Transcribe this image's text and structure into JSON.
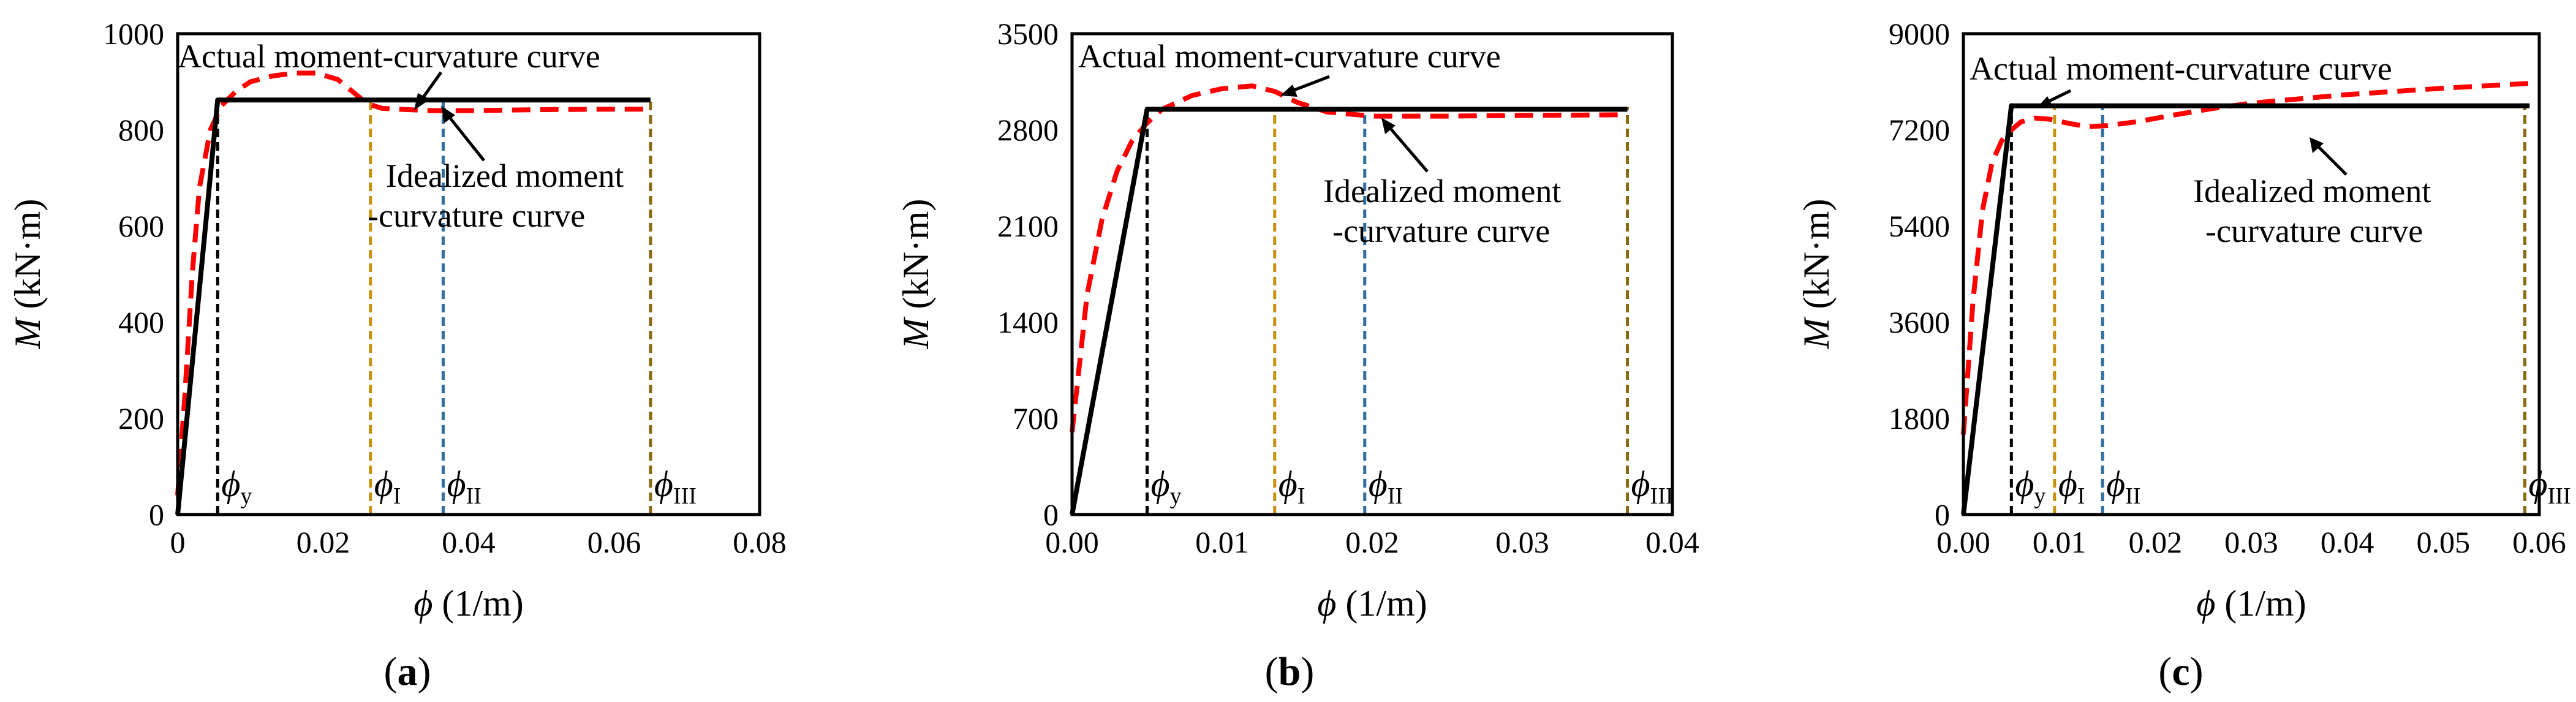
{
  "chart_data": [
    {
      "type": "line",
      "panel": "a",
      "xlabel_sym": "ϕ",
      "xlabel_unit": " (1/m)",
      "ylabel_sym": "M",
      "ylabel_unit": " (kN·m)",
      "xlim": [
        0,
        0.08
      ],
      "ylim": [
        0,
        1000
      ],
      "xticks": [
        "0",
        "0.02",
        "0.04",
        "0.06",
        "0.08"
      ],
      "xtick_values": [
        0,
        0.02,
        0.04,
        0.06,
        0.08
      ],
      "yticks": [
        "0",
        "200",
        "400",
        "600",
        "800",
        "1000"
      ],
      "ytick_values": [
        0,
        200,
        400,
        600,
        800,
        1000
      ],
      "series": [
        {
          "name": "Idealized moment-curvature curve",
          "color": "#000000",
          "style": "solid",
          "x": [
            0,
            0.0055,
            0.065
          ],
          "y": [
            0,
            862,
            862
          ]
        },
        {
          "name": "Actual moment-curvature curve",
          "color": "#ff0000",
          "style": "dashed",
          "x": [
            0,
            0.001,
            0.002,
            0.003,
            0.0045,
            0.006,
            0.008,
            0.01,
            0.013,
            0.016,
            0.019,
            0.022,
            0.024,
            0.026,
            0.028,
            0.03,
            0.035,
            0.04,
            0.05,
            0.06,
            0.065
          ],
          "y": [
            40,
            250,
            500,
            680,
            800,
            850,
            880,
            900,
            912,
            918,
            918,
            905,
            880,
            855,
            845,
            843,
            840,
            840,
            842,
            843,
            843
          ]
        }
      ],
      "markers": [
        {
          "sym": "ϕ",
          "sub": "y",
          "x": 0.0055,
          "color": "#000000"
        },
        {
          "sym": "ϕ",
          "sub": "I",
          "x": 0.0265,
          "color": "#c9920e"
        },
        {
          "sym": "ϕ",
          "sub": "II",
          "x": 0.0365,
          "color": "#2f6ea3"
        },
        {
          "sym": "ϕ",
          "sub": "III",
          "x": 0.065,
          "color": "#8a6a10"
        }
      ],
      "annotations": {
        "actual_label": "Actual moment-curvature curve",
        "idealized_line1": "Idealized moment",
        "idealized_line2": "-curvature curve"
      }
    },
    {
      "type": "line",
      "panel": "b",
      "xlabel_sym": "ϕ",
      "xlabel_unit": " (1/m)",
      "ylabel_sym": "M",
      "ylabel_unit": " (kN·m)",
      "xlim": [
        0,
        0.04
      ],
      "ylim": [
        0,
        3500
      ],
      "xticks": [
        "0.00",
        "0.01",
        "0.02",
        "0.03",
        "0.04"
      ],
      "xtick_values": [
        0,
        0.01,
        0.02,
        0.03,
        0.04
      ],
      "yticks": [
        "0",
        "700",
        "1400",
        "2100",
        "2800",
        "3500"
      ],
      "ytick_values": [
        0,
        700,
        1400,
        2100,
        2800,
        3500
      ],
      "series": [
        {
          "name": "Idealized moment-curvature curve",
          "color": "#000000",
          "style": "solid",
          "x": [
            0,
            0.005,
            0.037
          ],
          "y": [
            0,
            2950,
            2950
          ]
        },
        {
          "name": "Actual moment-curvature curve",
          "color": "#ff0000",
          "style": "dashed",
          "x": [
            0,
            0.0005,
            0.001,
            0.002,
            0.003,
            0.004,
            0.005,
            0.006,
            0.008,
            0.01,
            0.012,
            0.0135,
            0.015,
            0.017,
            0.02,
            0.025,
            0.03,
            0.037
          ],
          "y": [
            600,
            1100,
            1600,
            2150,
            2500,
            2720,
            2850,
            2950,
            3050,
            3100,
            3120,
            3080,
            3000,
            2930,
            2900,
            2900,
            2905,
            2910
          ]
        }
      ],
      "markers": [
        {
          "sym": "ϕ",
          "sub": "y",
          "x": 0.005,
          "color": "#000000"
        },
        {
          "sym": "ϕ",
          "sub": "I",
          "x": 0.0135,
          "color": "#c9920e"
        },
        {
          "sym": "ϕ",
          "sub": "II",
          "x": 0.0195,
          "color": "#2f6ea3"
        },
        {
          "sym": "ϕ",
          "sub": "III",
          "x": 0.037,
          "color": "#8a6a10"
        }
      ],
      "annotations": {
        "actual_label": "Actual moment-curvature curve",
        "idealized_line1": "Idealized moment",
        "idealized_line2": "-curvature curve"
      }
    },
    {
      "type": "line",
      "panel": "c",
      "xlabel_sym": "ϕ",
      "xlabel_unit": " (1/m)",
      "ylabel_sym": "M",
      "ylabel_unit": " (kN·m)",
      "xlim": [
        0,
        0.06
      ],
      "ylim": [
        0,
        9000
      ],
      "xticks": [
        "0.00",
        "0.01",
        "0.02",
        "0.03",
        "0.04",
        "0.05",
        "0.06"
      ],
      "xtick_values": [
        0,
        0.01,
        0.02,
        0.03,
        0.04,
        0.05,
        0.06
      ],
      "yticks": [
        "0",
        "1800",
        "3600",
        "5400",
        "7200",
        "9000"
      ],
      "ytick_values": [
        0,
        1800,
        3600,
        5400,
        7200,
        9000
      ],
      "series": [
        {
          "name": "Idealized moment-curvature curve",
          "color": "#000000",
          "style": "solid",
          "x": [
            0,
            0.005,
            0.059
          ],
          "y": [
            0,
            7650,
            7650
          ]
        },
        {
          "name": "Actual moment-curvature curve",
          "color": "#ff0000",
          "style": "dashed",
          "x": [
            0,
            0.001,
            0.002,
            0.003,
            0.004,
            0.005,
            0.006,
            0.0075,
            0.009,
            0.011,
            0.013,
            0.015,
            0.018,
            0.022,
            0.026,
            0.03,
            0.035,
            0.04,
            0.045,
            0.05,
            0.055,
            0.059
          ],
          "y": [
            1500,
            4000,
            5700,
            6600,
            7000,
            7200,
            7350,
            7420,
            7400,
            7320,
            7260,
            7280,
            7350,
            7480,
            7600,
            7700,
            7780,
            7860,
            7920,
            7980,
            8030,
            8070
          ]
        }
      ],
      "markers": [
        {
          "sym": "ϕ",
          "sub": "y",
          "x": 0.005,
          "color": "#000000"
        },
        {
          "sym": "ϕ",
          "sub": "I",
          "x": 0.0095,
          "color": "#c9920e"
        },
        {
          "sym": "ϕ",
          "sub": "II",
          "x": 0.0145,
          "color": "#2f6ea3"
        },
        {
          "sym": "ϕ",
          "sub": "III",
          "x": 0.0585,
          "color": "#8a6a10"
        }
      ],
      "annotations": {
        "actual_label": "Actual moment-curvature curve",
        "idealized_line1": "Idealized moment",
        "idealized_line2": "-curvature curve"
      }
    }
  ],
  "captions": [
    "a",
    "b",
    "c"
  ]
}
